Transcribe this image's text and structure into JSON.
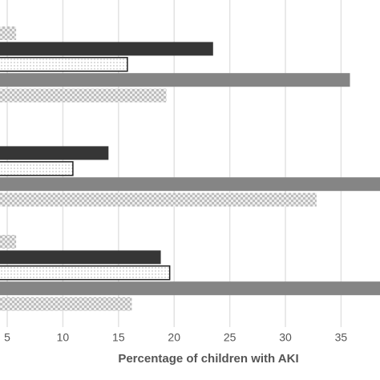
{
  "chart_data": {
    "type": "hbar",
    "x_label": "Percentage of children with AKI",
    "categories": [
      null,
      null,
      null
    ],
    "series": [
      {
        "color": "#cfcfcf",
        "pattern": "checker",
        "values": [
          5.8,
          null,
          5.8
        ]
      },
      {
        "color": "#363636",
        "pattern": "solid",
        "values": [
          23.5,
          14.1,
          18.8
        ]
      },
      {
        "color": "#ffffff",
        "pattern": "dots",
        "values": [
          15.8,
          10.9,
          19.6
        ]
      },
      {
        "color": "#858585",
        "pattern": "solid",
        "values": [
          35.8,
          39,
          39
        ]
      },
      {
        "color": "#cfcfcf",
        "pattern": "checker",
        "values": [
          19.3,
          32.8,
          16.2
        ]
      }
    ],
    "xlim": [
      4.35,
      38.5
    ],
    "xticks": [
      5,
      10,
      15,
      20,
      25,
      30,
      35
    ],
    "grid": true
  }
}
